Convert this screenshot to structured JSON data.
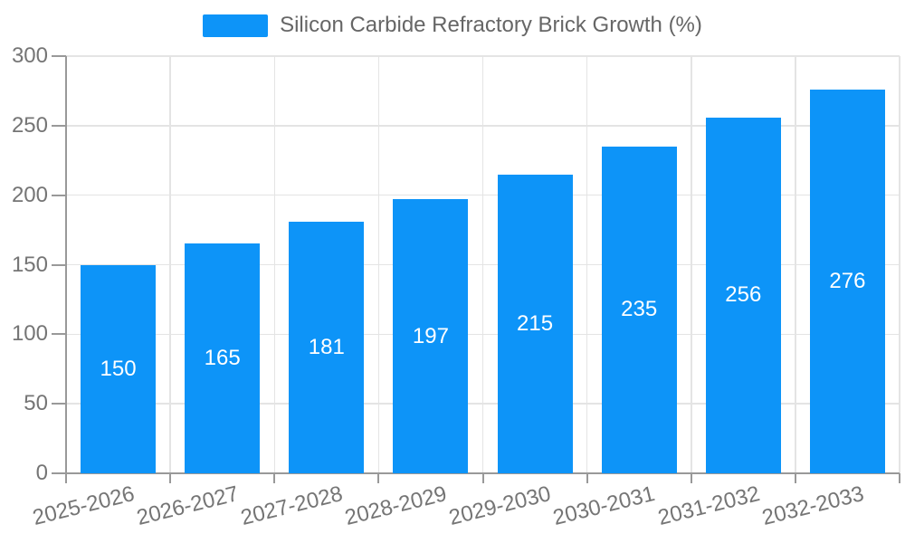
{
  "chart_data": {
    "type": "bar",
    "title": "Silicon Carbide Refractory Brick Growth (%)",
    "legend": {
      "label": "Silicon Carbide Refractory Brick Growth (%)",
      "position": "top-center"
    },
    "categories": [
      "2025-2026",
      "2026-2027",
      "2027-2028",
      "2028-2029",
      "2029-2030",
      "2030-2031",
      "2031-2032",
      "2032-2033"
    ],
    "series": [
      {
        "name": "Silicon Carbide Refractory Brick Growth (%)",
        "values": [
          150,
          165,
          181,
          197,
          215,
          235,
          256,
          276
        ]
      }
    ],
    "value_labels": "inside-center",
    "xlabel": "",
    "ylabel": "",
    "ylim": [
      0,
      300
    ],
    "yticks": [
      0,
      50,
      100,
      150,
      200,
      250,
      300
    ],
    "grid": true,
    "x_label_rotation_deg": -14,
    "colors": {
      "bar": "#0d94f8",
      "value_label": "#ffffff",
      "axis_text": "#757575",
      "legend_text": "#666666",
      "gridline": "#e4e4e4",
      "axis_line": "#999999",
      "background": "#ffffff"
    }
  }
}
